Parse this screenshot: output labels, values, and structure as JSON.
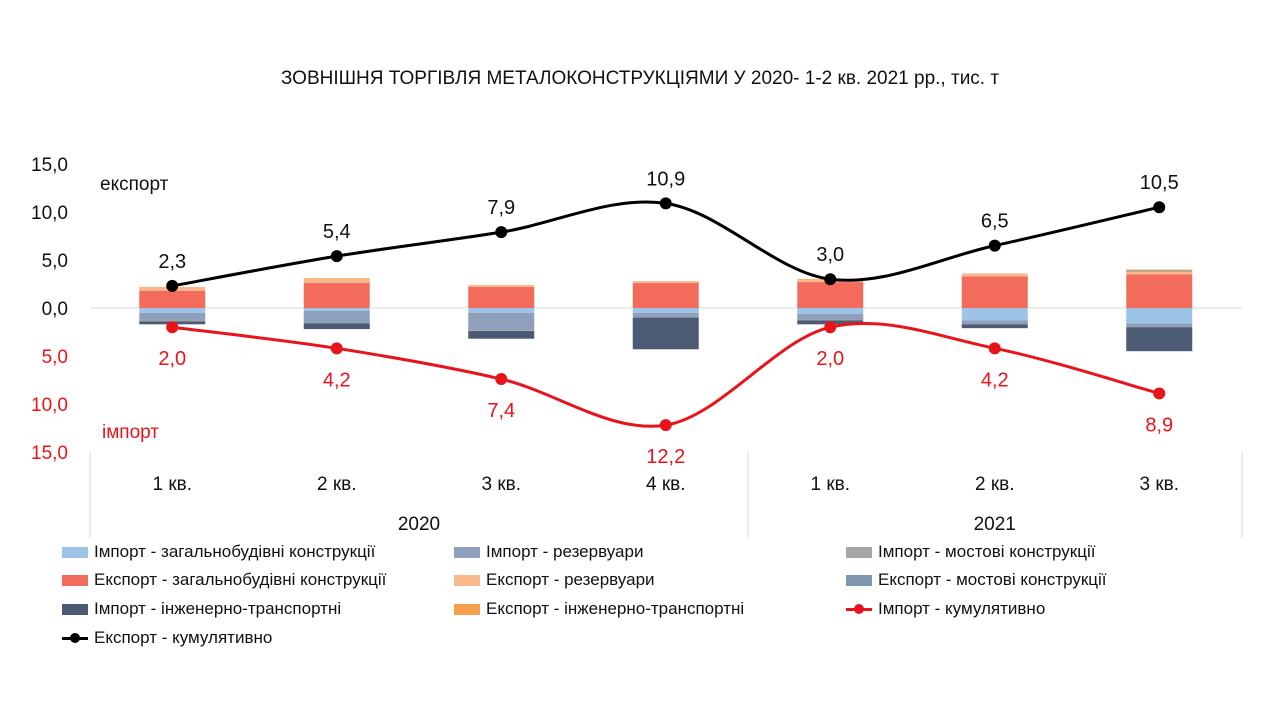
{
  "chart_data": {
    "type": "bar",
    "title": "ЗОВНІШНЯ ТОРГІВЛЯ МЕТАЛОКОНСТРУКЦІЯМИ У 2020-  1-2 кв. 2021 рр., тис. т",
    "categories": [
      "1 кв.",
      "2 кв.",
      "3 кв.",
      "4 кв.",
      "1 кв.",
      "2 кв.",
      "3 кв."
    ],
    "year_groups": [
      {
        "label": "2020",
        "span": 4
      },
      {
        "label": "2021",
        "span": 3
      }
    ],
    "y_ticks": [
      "15,0",
      "10,0",
      "5,0",
      "0,0",
      "5,0",
      "10,0",
      "15,0"
    ],
    "ylim": [
      -15,
      15
    ],
    "grid": false,
    "annotations": {
      "export": "експорт",
      "import": "імпорт"
    },
    "bar_series": [
      {
        "name": "Імпорт - загальнобудівні конструкції",
        "color": "#9DC3E6",
        "values": [
          -0.5,
          -0.3,
          -0.5,
          -0.5,
          -0.6,
          -1.3,
          -1.6
        ]
      },
      {
        "name": "Імпорт - резервуари",
        "color": "#8EA0BC",
        "values": [
          -0.8,
          -1.3,
          -1.8,
          -0.5,
          -0.6,
          -0.4,
          -0.4
        ]
      },
      {
        "name": "Імпорт - мостові конструкції",
        "color": "#A6A6A6",
        "values": [
          -0.1,
          0.0,
          -0.1,
          0.0,
          -0.1,
          0.0,
          0.0
        ]
      },
      {
        "name": "Імпорт - інженерно-транспортні",
        "color": "#4D5A73",
        "values": [
          -0.3,
          -0.6,
          -0.8,
          -3.3,
          -0.4,
          -0.4,
          -2.5
        ]
      },
      {
        "name": "Експорт - загальнобудівні конструкції",
        "color": "#F26B5B",
        "values": [
          1.8,
          2.6,
          2.2,
          2.6,
          2.7,
          3.3,
          3.5
        ]
      },
      {
        "name": "Експорт - резервуари",
        "color": "#F8B88B",
        "values": [
          0.4,
          0.4,
          0.2,
          0.2,
          0.2,
          0.3,
          0.3
        ]
      },
      {
        "name": "Експорт - мостові конструкції",
        "color": "#7E96AE",
        "values": [
          0.0,
          0.0,
          0.0,
          0.0,
          0.0,
          0.0,
          0.1
        ]
      },
      {
        "name": "Експорт - інженерно-транспортні",
        "color": "#F4A04A",
        "values": [
          0.0,
          0.1,
          0.0,
          0.0,
          0.1,
          0.0,
          0.1
        ]
      }
    ],
    "line_series": [
      {
        "name": "Імпорт - кумулятивно",
        "color": "#E8141B",
        "values": [
          -2.0,
          -4.2,
          -7.4,
          -12.2,
          -2.0,
          -4.2,
          -8.9
        ],
        "labels": [
          "2,0",
          "4,2",
          "7,4",
          "12,2",
          "2,0",
          "4,2",
          "8,9"
        ]
      },
      {
        "name": "Експорт - кумулятивно",
        "color": "#000000",
        "values": [
          2.3,
          5.4,
          7.9,
          10.9,
          3.0,
          6.5,
          10.5
        ],
        "labels": [
          "2,3",
          "5,4",
          "7,9",
          "10,9",
          "3,0",
          "6,5",
          "10,5"
        ]
      }
    ]
  },
  "legend": [
    {
      "label": "Імпорт - загальнобудівні конструкції",
      "kind": "box",
      "color": "#9DC3E6"
    },
    {
      "label": "Імпорт - резервуари",
      "kind": "box",
      "color": "#8EA0BC"
    },
    {
      "label": "Імпорт - мостові конструкції",
      "kind": "box",
      "color": "#A6A6A6"
    },
    {
      "label": "Експорт - загальнобудівні конструкції",
      "kind": "box",
      "color": "#F26B5B"
    },
    {
      "label": "Експорт - резервуари",
      "kind": "box",
      "color": "#F8B88B"
    },
    {
      "label": "Експорт - мостові конструкції",
      "kind": "box",
      "color": "#7E96AE"
    },
    {
      "label": "Імпорт - інженерно-транспортні",
      "kind": "box",
      "color": "#4D5A73"
    },
    {
      "label": "Експорт - інженерно-транспортні",
      "kind": "box",
      "color": "#F4A04A"
    },
    {
      "label": "Імпорт - кумулятивно",
      "kind": "line",
      "color": "#E8141B"
    },
    {
      "label": "Експорт - кумулятивно",
      "kind": "line",
      "color": "#000000"
    }
  ]
}
